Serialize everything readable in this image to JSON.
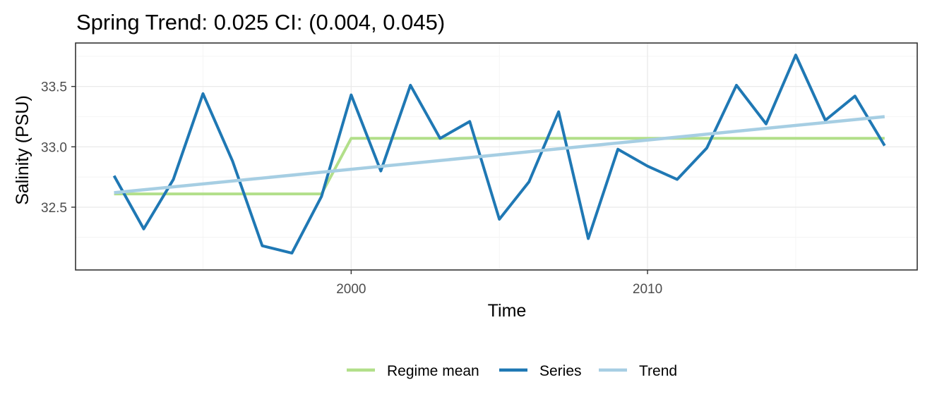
{
  "chart_data": {
    "type": "line",
    "title": "Spring Trend: 0.025 CI: (0.004, 0.045)",
    "xlabel": "Time",
    "ylabel": "Salinity (PSU)",
    "xlim": [
      1990.7,
      2019.1
    ],
    "ylim": [
      31.98,
      33.86
    ],
    "x_ticks": [
      2000,
      2010
    ],
    "y_ticks": [
      32.5,
      33.0,
      33.5
    ],
    "y_tick_labels": [
      "32.5",
      "33.0",
      "33.5"
    ],
    "grid": true,
    "legend_position": "bottom",
    "series": [
      {
        "name": "Regime mean",
        "color": "#b2df8a",
        "x": [
          1992,
          1999,
          2000,
          2018
        ],
        "y": [
          32.61,
          32.61,
          33.07,
          33.07
        ]
      },
      {
        "name": "Series",
        "color": "#1f78b4",
        "x": [
          1992,
          1993,
          1994,
          1995,
          1996,
          1997,
          1998,
          1999,
          2000,
          2001,
          2002,
          2003,
          2004,
          2005,
          2006,
          2007,
          2008,
          2009,
          2010,
          2011,
          2012,
          2013,
          2014,
          2015,
          2016,
          2017,
          2018
        ],
        "y": [
          32.76,
          32.32,
          32.73,
          33.44,
          32.88,
          32.18,
          32.12,
          32.59,
          33.43,
          32.8,
          33.51,
          33.07,
          33.21,
          32.4,
          32.71,
          33.29,
          32.24,
          32.98,
          32.84,
          32.73,
          32.99,
          33.51,
          33.19,
          33.76,
          33.22,
          33.42,
          33.01
        ]
      },
      {
        "name": "Trend",
        "color": "#a6cee3",
        "x": [
          1992,
          2018
        ],
        "y": [
          32.62,
          33.25
        ]
      }
    ]
  }
}
